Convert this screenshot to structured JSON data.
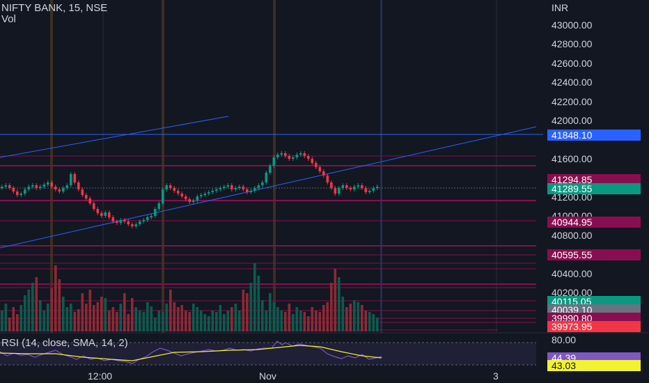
{
  "header": {
    "symbol": "NIFTY BANK, 15, NSE",
    "volume_label": "Vol"
  },
  "price_axis": {
    "currency": "INR",
    "labels": [
      "43000.00",
      "42800.00",
      "42600.00",
      "42400.00",
      "42200.00",
      "42000.00",
      "41600.00",
      "41200.00",
      "41000.00",
      "40800.00",
      "40400.00",
      "40200.00"
    ]
  },
  "price_tags": [
    {
      "value": "41848.10",
      "color": "#2962ff"
    },
    {
      "value": "41294.85",
      "color": "#880e4f"
    },
    {
      "value": "41289.55",
      "color": "#089981"
    },
    {
      "value": "40944.95",
      "color": "#880e4f"
    },
    {
      "value": "40595.55",
      "color": "#880e4f"
    },
    {
      "value": "40115.05",
      "color": "#089981"
    },
    {
      "value": "40039.10",
      "color": "#6a7180"
    },
    {
      "value": "39990.80",
      "color": "#880e4f"
    },
    {
      "value": "39973.95",
      "color": "#f23645"
    }
  ],
  "rsi": {
    "label": "RSI (14, close, SMA, 14, 2)",
    "axis_label": "80.00",
    "value": "44.39",
    "value_color": "#7e57c2",
    "sma": "43.03",
    "sma_color": "#f2f235"
  },
  "time_axis": {
    "labels": [
      "12:00",
      "Nov",
      "3"
    ]
  },
  "colors": {
    "up": "#089981",
    "down": "#f23645",
    "background": "#131722",
    "trendline": "#2962ff",
    "level": "#880e4f"
  }
}
